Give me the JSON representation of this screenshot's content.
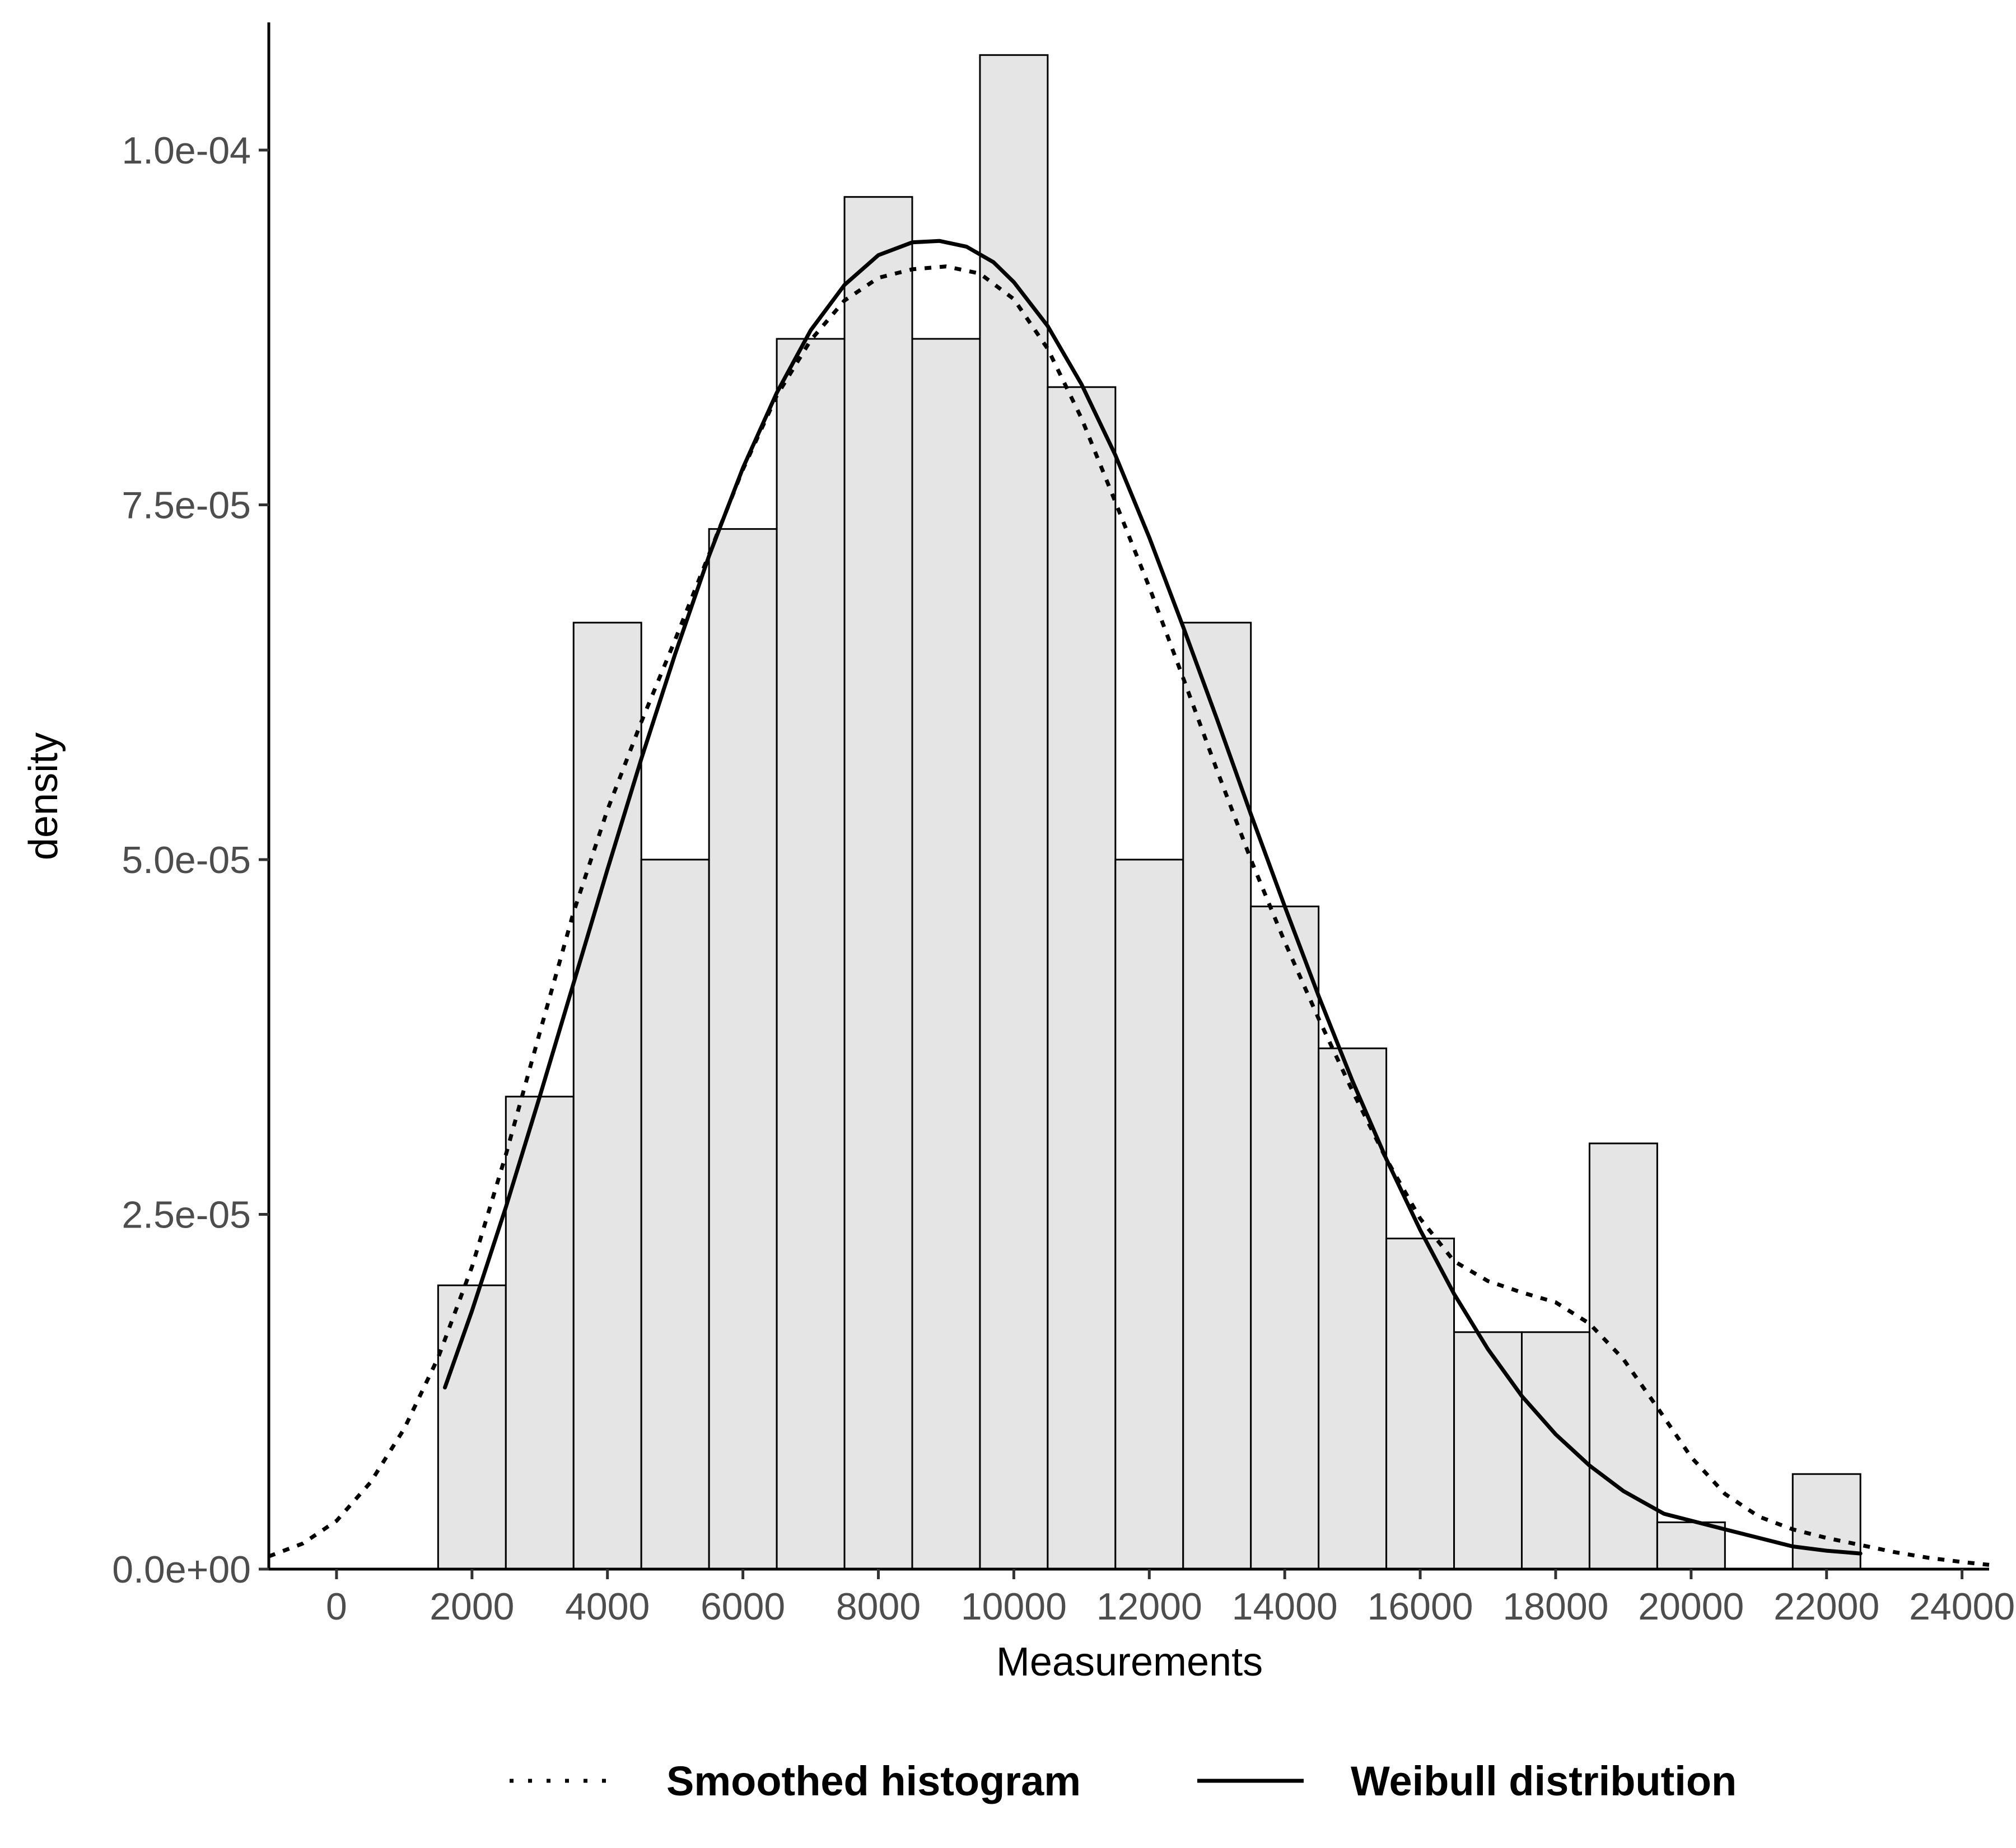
{
  "chart_data": {
    "type": "bar",
    "title": "",
    "xlabel": "Measurements",
    "ylabel": "density",
    "xlim": [
      -1000,
      24400
    ],
    "ylim": [
      0,
      0.000109
    ],
    "x_ticks": [
      {
        "value": 0,
        "label": "0"
      },
      {
        "value": 2000,
        "label": "2000"
      },
      {
        "value": 4000,
        "label": "4000"
      },
      {
        "value": 6000,
        "label": "6000"
      },
      {
        "value": 8000,
        "label": "8000"
      },
      {
        "value": 10000,
        "label": "10000"
      },
      {
        "value": 12000,
        "label": "12000"
      },
      {
        "value": 14000,
        "label": "14000"
      },
      {
        "value": 16000,
        "label": "16000"
      },
      {
        "value": 18000,
        "label": "18000"
      },
      {
        "value": 20000,
        "label": "20000"
      },
      {
        "value": 22000,
        "label": "22000"
      },
      {
        "value": 24000,
        "label": "24000"
      }
    ],
    "y_ticks": [
      {
        "value": 0,
        "label": "0.0e+00"
      },
      {
        "value": 2.5e-05,
        "label": "2.5e-05"
      },
      {
        "value": 5e-05,
        "label": "5.0e-05"
      },
      {
        "value": 7.5e-05,
        "label": "7.5e-05"
      },
      {
        "value": 0.0001,
        "label": "1.0e-04"
      }
    ],
    "grid": false,
    "legend_position": "bottom",
    "histogram": {
      "bin_width": 1000,
      "fill": "#e5e5e5",
      "stroke": "#000000",
      "bins": [
        {
          "center": 2000,
          "density": 2e-05
        },
        {
          "center": 3000,
          "density": 3.33e-05
        },
        {
          "center": 4000,
          "density": 6.67e-05
        },
        {
          "center": 5000,
          "density": 5e-05
        },
        {
          "center": 6000,
          "density": 7.33e-05
        },
        {
          "center": 7000,
          "density": 8.67e-05
        },
        {
          "center": 8000,
          "density": 9.67e-05
        },
        {
          "center": 9000,
          "density": 8.67e-05
        },
        {
          "center": 10000,
          "density": 0.0001067
        },
        {
          "center": 11000,
          "density": 8.33e-05
        },
        {
          "center": 12000,
          "density": 5e-05
        },
        {
          "center": 13000,
          "density": 6.67e-05
        },
        {
          "center": 14000,
          "density": 4.67e-05
        },
        {
          "center": 15000,
          "density": 3.67e-05
        },
        {
          "center": 16000,
          "density": 2.33e-05
        },
        {
          "center": 17000,
          "density": 1.67e-05
        },
        {
          "center": 18000,
          "density": 1.67e-05
        },
        {
          "center": 19000,
          "density": 3e-05
        },
        {
          "center": 20000,
          "density": 3.3e-06
        },
        {
          "center": 21000,
          "density": 0
        },
        {
          "center": 22000,
          "density": 6.7e-06
        }
      ]
    },
    "series": [
      {
        "name": "Smoothed histogram",
        "line_style": "dotted",
        "color": "#000000",
        "x": [
          -1000,
          -500,
          0,
          500,
          1000,
          1500,
          2000,
          2500,
          3000,
          3500,
          4000,
          4500,
          5000,
          5500,
          6000,
          6500,
          7000,
          7500,
          8000,
          8500,
          9000,
          9500,
          10000,
          10500,
          11000,
          11500,
          12000,
          12500,
          13000,
          13500,
          14000,
          14500,
          15000,
          15500,
          16000,
          16500,
          17000,
          17500,
          18000,
          18500,
          19000,
          19500,
          20000,
          20500,
          21000,
          21500,
          22000,
          22500,
          23000,
          23500,
          24000,
          24400
        ],
        "y": [
          9e-07,
          1.8e-06,
          3.4e-06,
          6.1e-06,
          9.9e-06,
          1.49e-05,
          2.13e-05,
          2.92e-05,
          3.78e-05,
          4.63e-05,
          5.35e-05,
          5.97e-05,
          6.55e-05,
          7.15e-05,
          7.75e-05,
          8.27e-05,
          8.66e-05,
          8.94e-05,
          9.1e-05,
          9.16e-05,
          9.18e-05,
          9.13e-05,
          8.95e-05,
          8.6e-05,
          8.11e-05,
          7.52e-05,
          6.92e-05,
          6.28e-05,
          5.63e-05,
          5e-05,
          4.42e-05,
          3.88e-05,
          3.37e-05,
          2.89e-05,
          2.47e-05,
          2.17e-05,
          2.03e-05,
          1.95e-05,
          1.88e-05,
          1.73e-05,
          1.48e-05,
          1.14e-05,
          7.9e-06,
          5.3e-06,
          3.7e-06,
          2.8e-06,
          2.2e-06,
          1.7e-06,
          1.2e-06,
          8e-07,
          5e-07,
          3e-07
        ]
      },
      {
        "name": "Weibull distribution",
        "line_style": "solid",
        "color": "#000000",
        "x": [
          1600,
          2000,
          2500,
          3000,
          3500,
          4000,
          4500,
          5000,
          5500,
          6000,
          6500,
          7000,
          7500,
          8000,
          8500,
          8900,
          9300,
          9700,
          10000,
          10500,
          11000,
          11500,
          12000,
          12500,
          13000,
          13500,
          14000,
          14500,
          15000,
          15500,
          16000,
          16500,
          17000,
          17500,
          18000,
          18500,
          19000,
          19600,
          20500,
          21500,
          22000,
          22500
        ],
        "y": [
          1.28e-05,
          1.82e-05,
          2.55e-05,
          3.33e-05,
          4.13e-05,
          4.93e-05,
          5.71e-05,
          6.45e-05,
          7.14e-05,
          7.76e-05,
          8.29e-05,
          8.73e-05,
          9.05e-05,
          9.26e-05,
          9.35e-05,
          9.36e-05,
          9.32e-05,
          9.21e-05,
          9.07e-05,
          8.76e-05,
          8.35e-05,
          7.85e-05,
          7.27e-05,
          6.64e-05,
          5.99e-05,
          5.32e-05,
          4.67e-05,
          4.04e-05,
          3.44e-05,
          2.89e-05,
          2.39e-05,
          1.94e-05,
          1.55e-05,
          1.22e-05,
          9.5e-06,
          7.3e-06,
          5.5e-06,
          3.9e-06,
          2.8e-06,
          1.6e-06,
          1.3e-06,
          1.1e-06
        ]
      }
    ]
  }
}
